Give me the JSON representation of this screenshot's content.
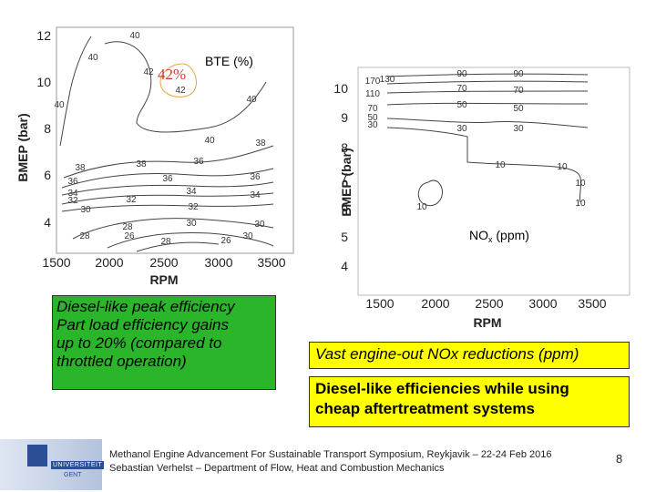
{
  "bte_plot": {
    "x_ticks": [
      "1500",
      "2000",
      "2500",
      "3000",
      "3500"
    ],
    "y_ticks": [
      "12",
      "10",
      "8",
      "6",
      "4"
    ],
    "xlabel": "RPM",
    "ylabel": "BMEP (bar)",
    "label": "BTE (%)",
    "peak_label": "42%",
    "contour_labels": [
      "40",
      "40",
      "42",
      "42",
      "40",
      "40",
      "40",
      "38",
      "38",
      "38",
      "36",
      "36",
      "36",
      "36",
      "34",
      "34",
      "34",
      "32",
      "32",
      "32",
      "30",
      "30",
      "30",
      "28",
      "28",
      "28",
      "26",
      "26",
      "30"
    ]
  },
  "nox_plot": {
    "x_ticks": [
      "1500",
      "2000",
      "2500",
      "3000",
      "3500"
    ],
    "y_ticks": [
      "10",
      "9",
      "8",
      "7",
      "6",
      "5",
      "4"
    ],
    "xlabel": "RPM",
    "ylabel": "BMEP (bar)",
    "label_main": "NO",
    "label_sub": "x",
    "label_unit": " (ppm)",
    "contour_labels": [
      "170",
      "130",
      "110",
      "70",
      "50",
      "30",
      "90",
      "70",
      "50",
      "30",
      "90",
      "70",
      "50",
      "30",
      "10",
      "10",
      "10",
      "10",
      "10"
    ]
  },
  "green_box": {
    "lines": [
      "Diesel-like peak efficiency",
      "Part load efficiency gains",
      "up to 20% (compared to",
      "throttled operation)"
    ]
  },
  "yellow_box_1": {
    "text": "Vast engine-out NOx reductions (ppm)"
  },
  "yellow_box_2": {
    "lines": [
      "Diesel-like efficiencies while using",
      "cheap aftertreatment systems"
    ]
  },
  "footer": {
    "line1": "Methanol Engine Advancement For Sustainable Transport Symposium, Reykjavik – 22-24 Feb 2016",
    "line2": "Sebastian Verhelst – Department of Flow, Heat and Combustion Mechanics",
    "page": "8"
  },
  "logo": {
    "text1": "UNIVERSITEIT",
    "text2": "GENT"
  },
  "colors": {
    "green": "#2bb52b",
    "yellow": "#ffff00",
    "peak_red": "#d03a2a"
  }
}
